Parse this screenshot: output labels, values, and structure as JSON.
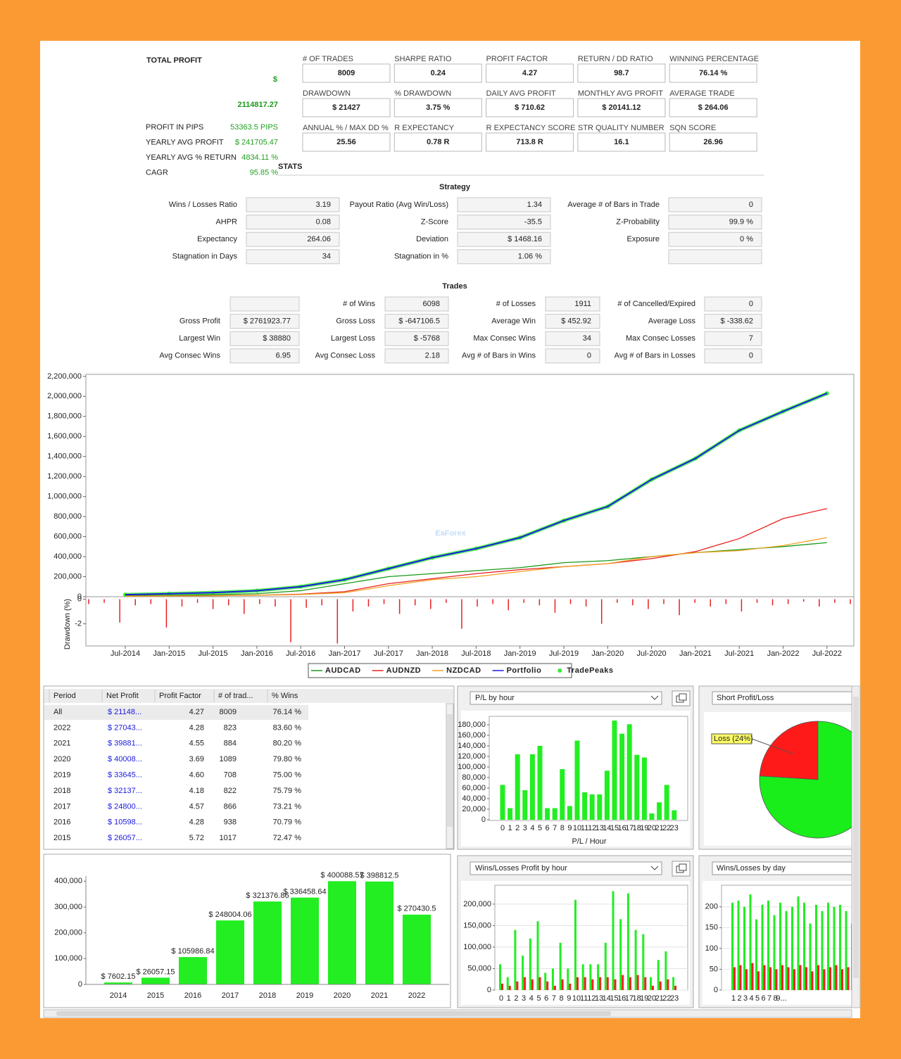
{
  "summary": {
    "title": "TOTAL PROFIT",
    "currency": "$",
    "total": "2114817.27",
    "rows": [
      {
        "label": "PROFIT IN PIPS",
        "value": "53363.5 PIPS"
      },
      {
        "label": "YEARLY AVG PROFIT",
        "value": "$ 241705.47"
      },
      {
        "label": "YEARLY AVG % RETURN",
        "value": "4834.11 %"
      },
      {
        "label": "CAGR",
        "value": "95.85 %"
      }
    ]
  },
  "stats_title": "STATS",
  "stat_boxes": [
    {
      "label": "# OF TRADES",
      "value": "8009"
    },
    {
      "label": "SHARPE RATIO",
      "value": "0.24"
    },
    {
      "label": "PROFIT FACTOR",
      "value": "4.27"
    },
    {
      "label": "RETURN / DD RATIO",
      "value": "98.7"
    },
    {
      "label": "WINNING PERCENTAGE",
      "value": "76.14 %"
    },
    {
      "label": "DRAWDOWN",
      "value": "$ 21427"
    },
    {
      "label": "% DRAWDOWN",
      "value": "3.75 %"
    },
    {
      "label": "DAILY AVG PROFIT",
      "value": "$ 710.62"
    },
    {
      "label": "MONTHLY AVG PROFIT",
      "value": "$ 20141.12"
    },
    {
      "label": "AVERAGE TRADE",
      "value": "$ 264.06"
    },
    {
      "label": "ANNUAL % / MAX DD %",
      "value": "25.56"
    },
    {
      "label": "R EXPECTANCY",
      "value": "0.78 R"
    },
    {
      "label": "R EXPECTANCY SCORE",
      "value": "713.8 R"
    },
    {
      "label": "STR QUALITY NUMBER",
      "value": "16.1"
    },
    {
      "label": "SQN SCORE",
      "value": "26.96"
    }
  ],
  "strategy": {
    "title": "Strategy",
    "rows": [
      [
        {
          "label": "Wins / Losses Ratio",
          "value": "3.19"
        },
        {
          "label": "Payout Ratio (Avg Win/Loss)",
          "value": "1.34"
        },
        {
          "label": "Average # of Bars in Trade",
          "value": "0"
        }
      ],
      [
        {
          "label": "AHPR",
          "value": "0.08"
        },
        {
          "label": "Z-Score",
          "value": "-35.5"
        },
        {
          "label": "Z-Probability",
          "value": "99.9 %"
        }
      ],
      [
        {
          "label": "Expectancy",
          "value": "264.06"
        },
        {
          "label": "Deviation",
          "value": "$ 1468.16"
        },
        {
          "label": "Exposure",
          "value": "0 %"
        }
      ],
      [
        {
          "label": "Stagnation in Days",
          "value": "34"
        },
        {
          "label": "Stagnation in %",
          "value": "1.06 %"
        },
        null
      ]
    ]
  },
  "trades": {
    "title": "Trades",
    "rows": [
      [
        null,
        {
          "label": "# of Wins",
          "value": "6098"
        },
        {
          "label": "# of Losses",
          "value": "1911"
        },
        {
          "label": "# of Cancelled/Expired",
          "value": "0"
        }
      ],
      [
        {
          "label": "Gross Profit",
          "value": "$ 2761923.77"
        },
        {
          "label": "Gross Loss",
          "value": "$ -647106.5"
        },
        {
          "label": "Average Win",
          "value": "$ 452.92"
        },
        {
          "label": "Average Loss",
          "value": "$ -338.62"
        }
      ],
      [
        {
          "label": "Largest Win",
          "value": "$ 38880"
        },
        {
          "label": "Largest Loss",
          "value": "$ -5768"
        },
        {
          "label": "Max Consec Wins",
          "value": "34"
        },
        {
          "label": "Max Consec Losses",
          "value": "7"
        }
      ],
      [
        {
          "label": "Avg Consec Wins",
          "value": "6.95"
        },
        {
          "label": "Avg Consec Loss",
          "value": "2.18"
        },
        {
          "label": "Avg # of Bars in Wins",
          "value": "0"
        },
        {
          "label": "Avg # of Bars in Losses",
          "value": "0"
        }
      ]
    ]
  },
  "equity_chart": {
    "type": "line",
    "watermark": "EaForex",
    "categories": [
      "Jul-2014",
      "Jan-2015",
      "Jul-2015",
      "Jan-2016",
      "Jul-2016",
      "Jan-2017",
      "Jul-2017",
      "Jan-2018",
      "Jul-2018",
      "Jan-2019",
      "Jul-2019",
      "Jan-2020",
      "Jul-2020",
      "Jan-2021",
      "Jul-2021",
      "Jan-2022",
      "Jul-2022"
    ],
    "ylim": [
      0,
      2220000
    ],
    "yticks": [
      0,
      {
        "value": 200000,
        "label": "200,000"
      },
      {
        "value": 400000,
        "label": "400,000"
      },
      {
        "value": 600000,
        "label": "600,000"
      },
      {
        "value": 800000,
        "label": "800,000"
      },
      {
        "value": 1000000,
        "label": "1,000,000"
      },
      {
        "value": 1200000,
        "label": "1,200,000"
      },
      {
        "value": 1400000,
        "label": "1,400,000"
      },
      {
        "value": 1600000,
        "label": "1,600,000"
      },
      {
        "value": 1800000,
        "label": "1,800,000"
      },
      {
        "value": 2000000,
        "label": "2,000,000"
      },
      {
        "value": 2200000,
        "label": "2,200,000"
      }
    ],
    "series": [
      {
        "name": "AUDCAD",
        "color": "#1a9a1a",
        "values": [
          10000,
          14000,
          20000,
          30000,
          60000,
          130000,
          200000,
          230000,
          260000,
          290000,
          340000,
          360000,
          400000,
          440000,
          470000,
          500000,
          540000
        ]
      },
      {
        "name": "AUDNZD",
        "color": "#e82020",
        "values": [
          5000,
          8000,
          10000,
          15000,
          25000,
          50000,
          130000,
          180000,
          230000,
          270000,
          300000,
          330000,
          380000,
          450000,
          580000,
          780000,
          880000
        ]
      },
      {
        "name": "NZDCAD",
        "color": "#f0a020",
        "values": [
          5000,
          7000,
          9000,
          14000,
          22000,
          40000,
          110000,
          170000,
          200000,
          250000,
          300000,
          330000,
          400000,
          440000,
          460000,
          510000,
          590000
        ]
      },
      {
        "name": "Portfolio",
        "color": "#1a1ae0",
        "values": [
          20000,
          30000,
          40000,
          60000,
          100000,
          170000,
          280000,
          390000,
          480000,
          590000,
          760000,
          900000,
          1170000,
          1380000,
          1660000,
          1850000,
          2030000
        ]
      },
      {
        "name": "TradePeaks",
        "color": "#33ee33",
        "values": [
          20000,
          30000,
          40000,
          60000,
          100000,
          170000,
          280000,
          390000,
          480000,
          590000,
          760000,
          900000,
          1170000,
          1380000,
          1660000,
          1850000,
          2030000
        ]
      }
    ],
    "drawdown": {
      "label": "Drawdown (%)",
      "color": "#e82020",
      "ylim": [
        -3.8,
        0.2
      ],
      "yticks": [
        0,
        -2
      ],
      "values": [
        -0.4,
        -0.3,
        -1.9,
        -0.5,
        -0.4,
        -2.3,
        -0.6,
        -0.3,
        -0.8,
        -0.5,
        -1.2,
        -0.4,
        -0.6,
        -3.5,
        -0.7,
        -0.5,
        -3.6,
        -1.0,
        -0.6,
        -0.4,
        -1.2,
        -0.5,
        -0.8,
        -0.3,
        -2.4,
        -0.6,
        -0.4,
        -0.9,
        -0.3,
        -0.5,
        -1.1,
        -0.4,
        -0.6,
        -2.0,
        -0.3,
        -0.5,
        -0.8,
        -0.4,
        -1.3,
        -0.3,
        -0.6,
        -0.4,
        -1.0,
        -0.3,
        -0.5,
        -0.4,
        -0.2,
        -0.6,
        -0.3,
        -0.4
      ]
    }
  },
  "period_table": {
    "columns": [
      "Period",
      "Net Profit",
      "Profit Factor",
      "# of trad...",
      "% Wins"
    ],
    "rows": [
      [
        "All",
        "$ 21148...",
        "4.27",
        "8009",
        "76.14 %"
      ],
      [
        "2022",
        "$ 27043...",
        "4.28",
        "823",
        "83.60 %"
      ],
      [
        "2021",
        "$ 39881...",
        "4.55",
        "884",
        "80.20 %"
      ],
      [
        "2020",
        "$ 40008...",
        "3.69",
        "1089",
        "79.80 %"
      ],
      [
        "2019",
        "$ 33645...",
        "4.60",
        "708",
        "75.00 %"
      ],
      [
        "2018",
        "$ 32137...",
        "4.18",
        "822",
        "75.79 %"
      ],
      [
        "2017",
        "$ 24800...",
        "4.57",
        "866",
        "73.21 %"
      ],
      [
        "2016",
        "$ 10598...",
        "4.28",
        "938",
        "70.79 %"
      ],
      [
        "2015",
        "$ 26057...",
        "5.72",
        "1017",
        "72.47 %"
      ]
    ]
  },
  "pl_by_hour": {
    "type": "bar",
    "selector": "P/L by hour",
    "xlabel": "P/L / Hour",
    "color": "#22ee22",
    "categories": [
      "0",
      "1",
      "2",
      "3",
      "4",
      "5",
      "6",
      "7",
      "8",
      "9",
      "10",
      "11",
      "12",
      "13",
      "14",
      "15",
      "16",
      "17",
      "18",
      "19",
      "20",
      "21",
      "22",
      "23"
    ],
    "values": [
      66000,
      22000,
      124000,
      56000,
      124000,
      140000,
      22000,
      22000,
      96000,
      26000,
      150000,
      52000,
      48000,
      48000,
      93000,
      188000,
      163000,
      181000,
      123000,
      118000,
      12000,
      33000,
      66000,
      18000
    ],
    "ylim": [
      0,
      196000
    ],
    "yticks": [
      0,
      {
        "value": 20000,
        "label": "20,000"
      },
      {
        "value": 40000,
        "label": "40,000"
      },
      {
        "value": 60000,
        "label": "60,000"
      },
      {
        "value": 80000,
        "label": "80,000"
      },
      {
        "value": 100000,
        "label": "100,000"
      },
      {
        "value": 120000,
        "label": "120,000"
      },
      {
        "value": 140000,
        "label": "140,000"
      },
      {
        "value": 160000,
        "label": "160,000"
      },
      {
        "value": 180000,
        "label": "180,000"
      }
    ]
  },
  "short_pl": {
    "type": "pie",
    "title": "Short Profit/Loss",
    "slices": [
      {
        "label": "Loss (24%)",
        "value": 24,
        "color": "#ff1a1a"
      },
      {
        "value": 76,
        "color": "#1aee1a"
      }
    ]
  },
  "yearly": {
    "type": "bar",
    "color": "#22ee22",
    "categories": [
      "2014",
      "2015",
      "2016",
      "2017",
      "2018",
      "2019",
      "2020",
      "2021",
      "2022"
    ],
    "values": [
      7602.15,
      26057.15,
      105986.84,
      248004.06,
      321376.86,
      336458.64,
      400088.57,
      398812.5,
      270430.5
    ],
    "value_labels": [
      "$ 7602.15",
      "$ 26057.15",
      "$ 105986.84",
      "$ 248004.06",
      "$ 321376.86",
      "$ 336458.64",
      "$ 400088.57",
      "$ 398812.5",
      "$ 270430.5"
    ],
    "ylim": [
      0,
      420000
    ],
    "yticks": [
      0,
      {
        "value": 100000,
        "label": "100,000"
      },
      {
        "value": 200000,
        "label": "200,000"
      },
      {
        "value": 300000,
        "label": "300,000"
      },
      {
        "value": 400000,
        "label": "400,000"
      }
    ]
  },
  "wl_profit_hour": {
    "type": "bar",
    "selector": "Wins/Losses Profit by hour",
    "categories": [
      "0",
      "1",
      "2",
      "3",
      "4",
      "5",
      "6",
      "7",
      "8",
      "9",
      "10",
      "11",
      "12",
      "13",
      "14",
      "15",
      "16",
      "17",
      "18",
      "19",
      "20",
      "21",
      "22",
      "23"
    ],
    "series": [
      {
        "color": "#22ee22",
        "values": [
          60000,
          30000,
          140000,
          80000,
          120000,
          160000,
          40000,
          50000,
          110000,
          50000,
          210000,
          60000,
          60000,
          60000,
          110000,
          230000,
          165000,
          225000,
          140000,
          130000,
          30000,
          70000,
          90000,
          30000
        ]
      },
      {
        "color": "#ee2222",
        "values": [
          15000,
          10000,
          20000,
          30000,
          25000,
          30000,
          20000,
          10000,
          25000,
          15000,
          30000,
          30000,
          25000,
          30000,
          30000,
          25000,
          35000,
          30000,
          35000,
          30000,
          10000,
          20000,
          25000,
          10000
        ]
      }
    ],
    "ylim": [
      0,
      244000
    ],
    "yticks": [
      0,
      {
        "value": 50000,
        "label": "50,000"
      },
      {
        "value": 100000,
        "label": "100,000"
      },
      {
        "value": 150000,
        "label": "150,000"
      },
      {
        "value": 200000,
        "label": "200,000"
      }
    ]
  },
  "wl_by_day": {
    "type": "bar",
    "title": "Wins/Losses by day",
    "categories": [
      "1",
      "2",
      "3",
      "4",
      "5",
      "6",
      "7",
      "8",
      "9...",
      null,
      null,
      null,
      null,
      null,
      null,
      null,
      null,
      null,
      null,
      null,
      null
    ],
    "series": [
      {
        "color": "#22ee22",
        "values": [
          210,
          215,
          200,
          230,
          170,
          205,
          215,
          180,
          210,
          190,
          200,
          225,
          210,
          160,
          205,
          190,
          210,
          200,
          205,
          190,
          160
        ]
      },
      {
        "color": "#ee2222",
        "values": [
          55,
          60,
          50,
          65,
          45,
          60,
          55,
          50,
          60,
          55,
          50,
          60,
          55,
          45,
          60,
          50,
          55,
          60,
          50,
          55,
          45
        ]
      }
    ],
    "ylim": [
      0,
      252
    ],
    "yticks": [
      0,
      50,
      100,
      150,
      200
    ]
  }
}
